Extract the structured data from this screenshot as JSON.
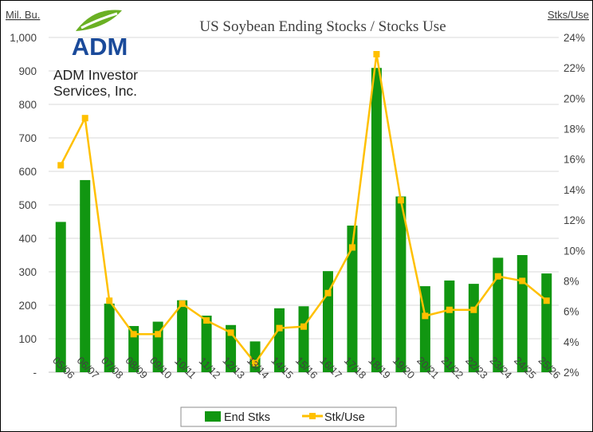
{
  "logo": {
    "name": "ADM",
    "subtitle_line1": "ADM Investor",
    "subtitle_line2": "Services, Inc.",
    "colors": {
      "leaf": "#6ab023",
      "text": "#1a4a9a"
    }
  },
  "chart_data": {
    "type": "bar",
    "title": "US Soybean Ending Stocks / Stocks Use",
    "ylabel_left": "Mil. Bu.",
    "ylabel_right": "Stks/Use",
    "categories": [
      "05/06",
      "06/07",
      "07/08",
      "08/09",
      "09/10",
      "10/11",
      "11/12",
      "12/13",
      "13/14",
      "14/15",
      "15/16",
      "16/17",
      "17/18",
      "18/19",
      "19/20",
      "20/21",
      "21/22",
      "22/23",
      "23/24",
      "24/25",
      "25/26"
    ],
    "ylim": [
      0,
      1000
    ],
    "y_ticks": [
      "-",
      "100",
      "200",
      "300",
      "400",
      "500",
      "600",
      "700",
      "800",
      "900",
      "1,000"
    ],
    "y2lim": [
      2,
      24
    ],
    "y2_ticks": [
      "2%",
      "4%",
      "6%",
      "8%",
      "10%",
      "12%",
      "14%",
      "16%",
      "18%",
      "20%",
      "22%",
      "24%"
    ],
    "series": [
      {
        "name": "End Stks",
        "type": "bar",
        "color": "#119611",
        "values": [
          449,
          574,
          205,
          138,
          151,
          215,
          169,
          141,
          92,
          191,
          197,
          302,
          438,
          909,
          525,
          257,
          274,
          264,
          342,
          350,
          295
        ]
      },
      {
        "name": "Stk/Use",
        "type": "line",
        "axis": "right",
        "color": "#ffc000",
        "values": [
          15.6,
          18.7,
          6.7,
          4.5,
          4.5,
          6.5,
          5.4,
          4.6,
          2.6,
          4.9,
          5.0,
          7.2,
          10.2,
          22.9,
          13.3,
          5.7,
          6.1,
          6.1,
          8.3,
          8.0,
          6.7
        ]
      }
    ],
    "grid": true,
    "legend": "bottom"
  }
}
